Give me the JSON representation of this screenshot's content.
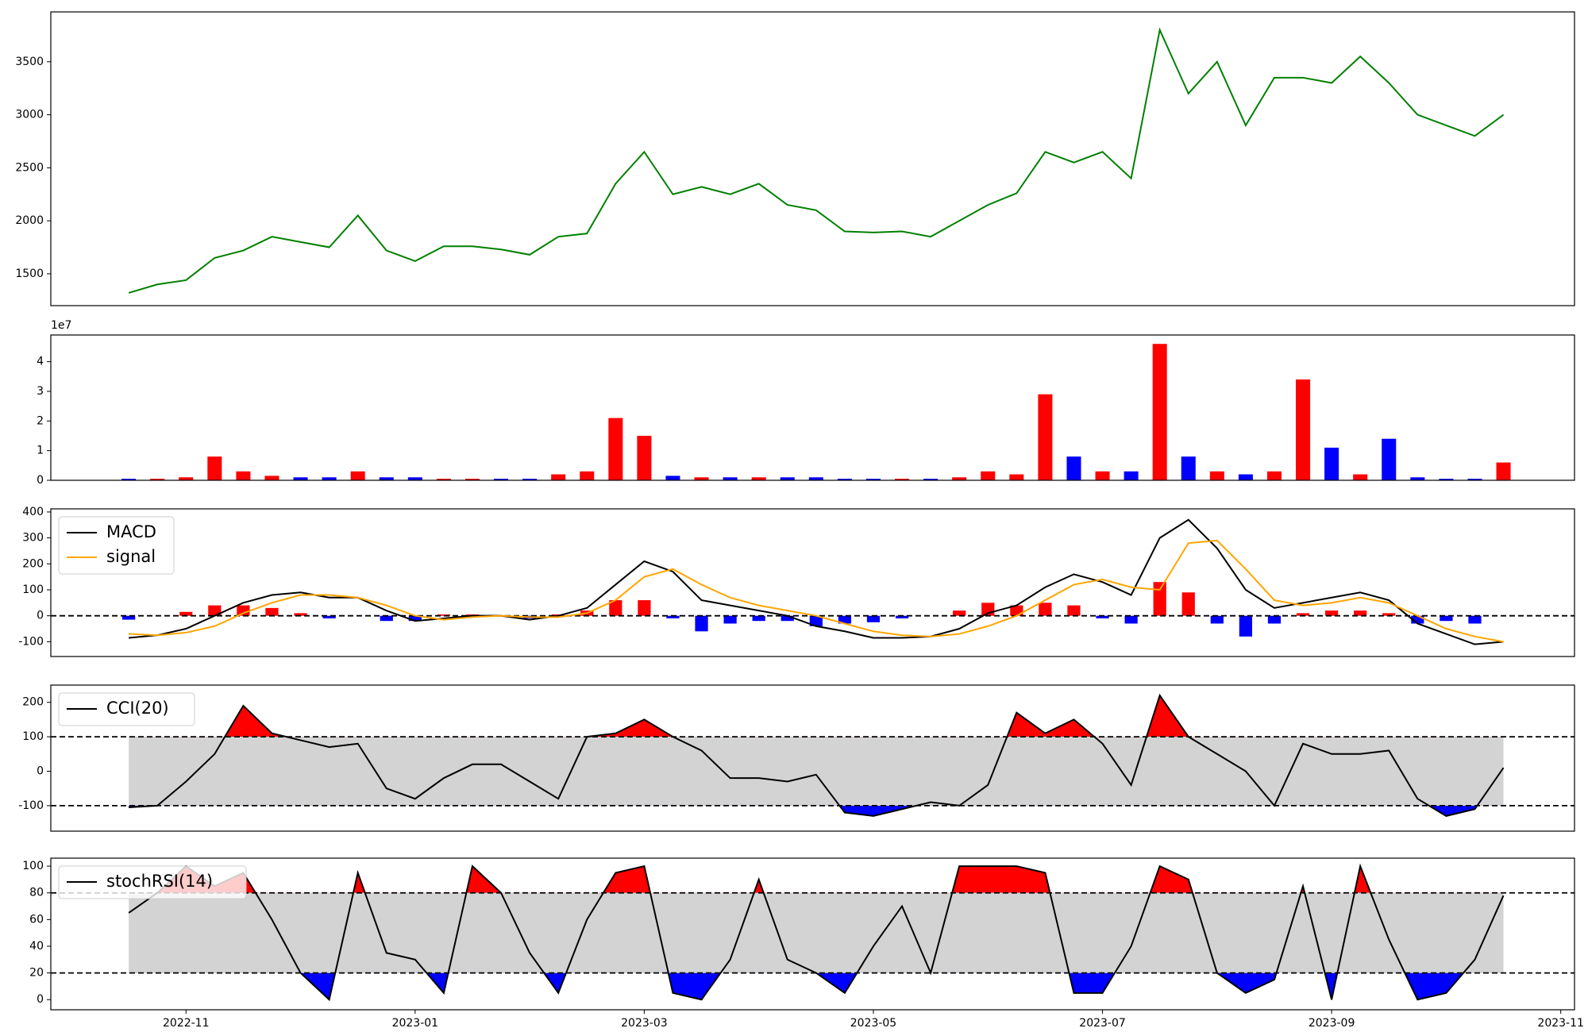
{
  "chart_data": [
    {
      "type": "line",
      "ylim": [
        1200,
        3970
      ],
      "yticks": [
        1500,
        2000,
        2500,
        3000,
        3500
      ],
      "series": [
        {
          "color": "green",
          "values": [
            1320,
            1400,
            1440,
            1650,
            1720,
            1850,
            1800,
            1750,
            2050,
            1720,
            1620,
            1760,
            1760,
            1730,
            1680,
            1850,
            1880,
            2350,
            2650,
            2250,
            2320,
            2250,
            2350,
            2150,
            2100,
            1900,
            1890,
            1900,
            1850,
            2000,
            2150,
            2260,
            2650,
            2550,
            2650,
            2400,
            3800,
            3200,
            3500,
            2900,
            3350,
            3350,
            3300,
            3550,
            3300,
            3000,
            2900,
            2800,
            3000
          ]
        }
      ]
    },
    {
      "type": "bar",
      "offset_label": "1e7",
      "ylim": [
        0,
        4.9
      ],
      "yticks": [
        0,
        1,
        2,
        3,
        4
      ],
      "values": [
        0.05,
        0.05,
        0.1,
        0.8,
        0.3,
        0.15,
        0.1,
        0.1,
        0.3,
        0.1,
        0.1,
        0.05,
        0.05,
        0.05,
        0.05,
        0.2,
        0.3,
        2.1,
        1.5,
        0.15,
        0.1,
        0.1,
        0.1,
        0.1,
        0.1,
        0.05,
        0.05,
        0.05,
        0.05,
        0.1,
        0.3,
        0.2,
        2.9,
        0.8,
        0.3,
        0.3,
        4.6,
        0.8,
        0.3,
        0.2,
        0.3,
        3.4,
        1.1,
        0.2,
        1.4,
        0.1,
        0.05,
        0.05,
        0.6
      ],
      "colors": [
        "blue",
        "red",
        "red",
        "red",
        "red",
        "red",
        "blue",
        "blue",
        "red",
        "blue",
        "blue",
        "red",
        "red",
        "blue",
        "blue",
        "red",
        "red",
        "red",
        "red",
        "blue",
        "red",
        "blue",
        "red",
        "blue",
        "blue",
        "blue",
        "blue",
        "red",
        "blue",
        "red",
        "red",
        "red",
        "red",
        "blue",
        "red",
        "blue",
        "red",
        "blue",
        "red",
        "blue",
        "red",
        "red",
        "blue",
        "red",
        "blue",
        "blue",
        "blue",
        "blue",
        "red"
      ]
    },
    {
      "type": "macd",
      "ylim": [
        -157,
        412
      ],
      "yticks": [
        -100,
        0,
        100,
        200,
        300,
        400
      ],
      "hlines": [
        0
      ],
      "legend": "upper left",
      "series": [
        {
          "name": "MACD",
          "color": "black",
          "values": [
            -85,
            -75,
            -50,
            0,
            50,
            80,
            90,
            70,
            70,
            20,
            -20,
            -10,
            0,
            0,
            -15,
            0,
            30,
            120,
            210,
            170,
            60,
            40,
            20,
            0,
            -40,
            -60,
            -85,
            -85,
            -80,
            -50,
            10,
            40,
            110,
            160,
            130,
            80,
            300,
            370,
            260,
            100,
            30,
            50,
            70,
            90,
            60,
            -30,
            -70,
            -110,
            -100
          ]
        },
        {
          "name": "signal",
          "color": "orange",
          "values": [
            -70,
            -75,
            -65,
            -40,
            10,
            50,
            80,
            80,
            70,
            40,
            0,
            -15,
            -5,
            0,
            -5,
            -5,
            10,
            60,
            150,
            180,
            120,
            70,
            40,
            20,
            0,
            -30,
            -60,
            -75,
            -80,
            -70,
            -40,
            0,
            60,
            120,
            140,
            110,
            100,
            280,
            290,
            180,
            60,
            40,
            50,
            70,
            50,
            0,
            -50,
            -80,
            -100
          ]
        }
      ],
      "histogram": {
        "positive_color": "red",
        "negative_color": "blue",
        "values": [
          -15,
          0,
          15,
          40,
          40,
          30,
          10,
          -10,
          0,
          -20,
          -20,
          5,
          5,
          0,
          -10,
          5,
          20,
          60,
          60,
          -10,
          -60,
          -30,
          -20,
          -20,
          -40,
          -30,
          -25,
          -10,
          0,
          20,
          50,
          40,
          50,
          40,
          -10,
          -30,
          130,
          90,
          -30,
          -80,
          -30,
          10,
          20,
          20,
          10,
          -30,
          -20,
          -30,
          0
        ]
      }
    },
    {
      "type": "band",
      "ylim": [
        -174,
        250
      ],
      "yticks": [
        -100,
        0,
        100,
        200
      ],
      "hlines": [
        100,
        -100
      ],
      "legend": "upper left",
      "band_color": "lightgray",
      "upper_color": "red",
      "lower_color": "blue",
      "series": [
        {
          "name": "CCI(20)",
          "color": "black",
          "values": [
            -105,
            -100,
            -30,
            50,
            190,
            110,
            90,
            70,
            80,
            -50,
            -80,
            -20,
            20,
            20,
            -30,
            -80,
            100,
            110,
            150,
            100,
            60,
            -20,
            -20,
            -30,
            -10,
            -120,
            -130,
            -110,
            -90,
            -100,
            -40,
            170,
            110,
            150,
            80,
            -40,
            220,
            100,
            50,
            0,
            -100,
            80,
            50,
            50,
            60,
            -80,
            -130,
            -110,
            10
          ]
        }
      ]
    },
    {
      "type": "band",
      "ylim": [
        -7.6,
        106
      ],
      "yticks": [
        0,
        20,
        40,
        60,
        80,
        100
      ],
      "hlines": [
        80,
        20
      ],
      "legend": "upper left",
      "band_color": "lightgray",
      "upper_color": "red",
      "lower_color": "blue",
      "series": [
        {
          "name": "stochRSI(14)",
          "color": "black",
          "values": [
            65,
            80,
            100,
            85,
            95,
            60,
            20,
            0,
            95,
            35,
            30,
            5,
            100,
            80,
            35,
            5,
            60,
            95,
            100,
            5,
            0,
            30,
            90,
            30,
            20,
            5,
            40,
            70,
            20,
            100,
            100,
            100,
            95,
            5,
            5,
            40,
            100,
            90,
            20,
            5,
            15,
            85,
            0,
            100,
            45,
            0,
            5,
            30,
            78
          ]
        }
      ],
      "x": [
        -0.5,
        -0.25,
        0,
        0.25,
        0.5,
        0.75,
        1,
        1.25,
        1.5,
        1.75,
        2,
        2.25,
        2.5,
        2.75,
        3,
        3.25,
        3.5,
        3.75,
        4,
        4.25,
        4.5,
        4.75,
        5,
        5.25,
        5.5,
        5.75,
        6,
        6.25,
        6.5,
        6.75,
        7,
        7.25,
        7.5,
        7.75,
        8,
        8.25,
        8.5,
        8.75,
        9,
        9.25,
        9.5,
        9.75,
        10,
        10.25,
        10.5,
        10.75,
        11,
        11.25,
        11.5
      ],
      "xlim": [
        -1.18,
        12.12
      ],
      "xticks": [
        {
          "value": 0,
          "label": "2022-11"
        },
        {
          "value": 2,
          "label": "2023-01"
        },
        {
          "value": 4,
          "label": "2023-03"
        },
        {
          "value": 6,
          "label": "2023-05"
        },
        {
          "value": 8,
          "label": "2023-07"
        },
        {
          "value": 10,
          "label": "2023-09"
        },
        {
          "value": 12,
          "label": "2023-11"
        }
      ]
    }
  ]
}
